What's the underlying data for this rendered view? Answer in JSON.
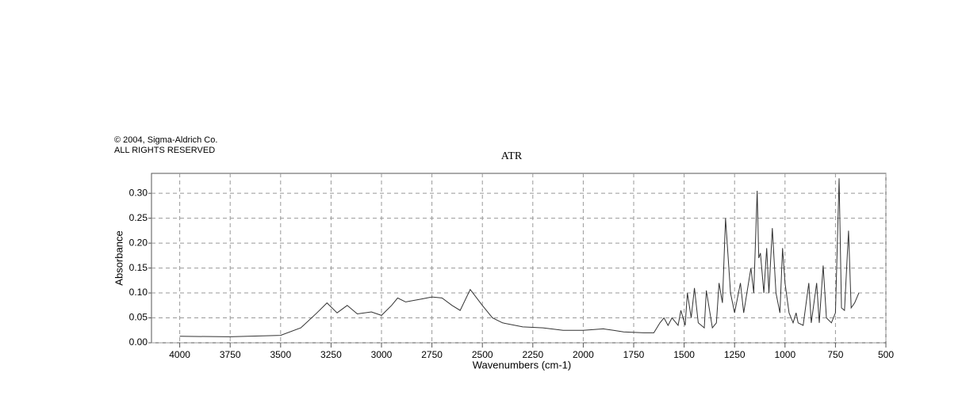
{
  "chart_data": {
    "type": "line",
    "title": "ATR",
    "annotations": [
      "© 2004, Sigma-Aldrich Co.",
      "ALL RIGHTS RESERVED"
    ],
    "x_label": "Wavenumbers (cm-1)",
    "y_label": "Absorbance",
    "x": [
      4000,
      3750,
      3500,
      3400,
      3320,
      3270,
      3220,
      3170,
      3120,
      3050,
      3000,
      2950,
      2920,
      2880,
      2800,
      2750,
      2700,
      2650,
      2610,
      2560,
      2500,
      2450,
      2400,
      2300,
      2200,
      2100,
      2000,
      1900,
      1850,
      1800,
      1700,
      1650,
      1620,
      1600,
      1580,
      1560,
      1530,
      1516,
      1495,
      1484,
      1465,
      1449,
      1430,
      1400,
      1390,
      1360,
      1340,
      1327,
      1310,
      1295,
      1270,
      1250,
      1221,
      1205,
      1169,
      1155,
      1138,
      1130,
      1122,
      1105,
      1091,
      1080,
      1063,
      1045,
      1025,
      1012,
      1000,
      980,
      960,
      945,
      935,
      910,
      882,
      870,
      843,
      830,
      811,
      795,
      770,
      750,
      732,
      720,
      705,
      685,
      672,
      655,
      634
    ],
    "values": [
      0.013,
      0.012,
      0.015,
      0.03,
      0.06,
      0.08,
      0.06,
      0.075,
      0.058,
      0.062,
      0.055,
      0.075,
      0.09,
      0.082,
      0.088,
      0.092,
      0.09,
      0.075,
      0.065,
      0.107,
      0.075,
      0.05,
      0.04,
      0.032,
      0.03,
      0.025,
      0.025,
      0.028,
      0.025,
      0.022,
      0.02,
      0.02,
      0.04,
      0.05,
      0.035,
      0.05,
      0.035,
      0.065,
      0.035,
      0.1,
      0.05,
      0.11,
      0.04,
      0.03,
      0.105,
      0.03,
      0.04,
      0.12,
      0.08,
      0.25,
      0.1,
      0.06,
      0.12,
      0.06,
      0.15,
      0.1,
      0.305,
      0.17,
      0.18,
      0.1,
      0.19,
      0.1,
      0.23,
      0.1,
      0.06,
      0.19,
      0.12,
      0.06,
      0.04,
      0.06,
      0.04,
      0.035,
      0.12,
      0.04,
      0.12,
      0.04,
      0.155,
      0.05,
      0.04,
      0.06,
      0.33,
      0.07,
      0.065,
      0.225,
      0.07,
      0.08,
      0.1
    ],
    "color": "#333333",
    "xlim": [
      4140,
      500
    ],
    "ylim": [
      0,
      0.34
    ],
    "xticks": [
      4000,
      3750,
      3500,
      3250,
      3000,
      2750,
      2500,
      2250,
      2000,
      1750,
      1500,
      1250,
      1000,
      750,
      500
    ],
    "yticks": [
      {
        "value": 0,
        "label": "0.00"
      },
      {
        "value": 0.05,
        "label": "0.05"
      },
      {
        "value": 0.1,
        "label": "0.10"
      },
      {
        "value": 0.15,
        "label": "0.15"
      },
      {
        "value": 0.2,
        "label": "0.20"
      },
      {
        "value": 0.25,
        "label": "0.25"
      },
      {
        "value": 0.3,
        "label": "0.30"
      }
    ],
    "grid": true
  }
}
